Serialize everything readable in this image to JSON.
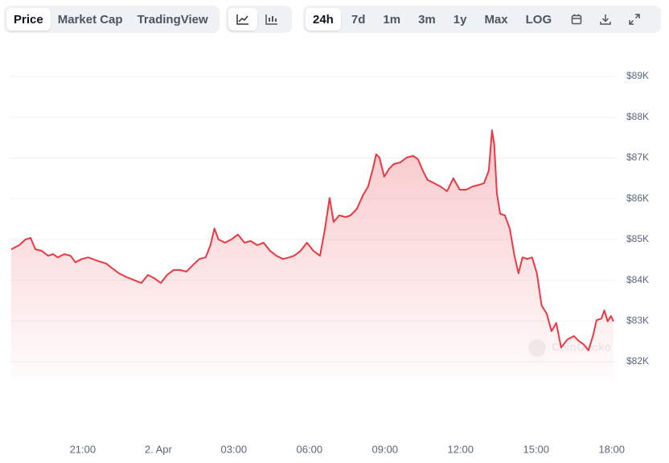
{
  "toolbar": {
    "views": [
      "Price",
      "Market Cap",
      "TradingView"
    ],
    "ranges": [
      "24h",
      "7d",
      "1m",
      "3m",
      "1y",
      "Max",
      "LOG"
    ]
  },
  "watermark": "CoinGecko",
  "chart_data": {
    "type": "line",
    "color": "#ea3943",
    "area": true,
    "grid": true,
    "x": [
      -5.84,
      -5.52,
      -5.27,
      -5.07,
      -4.88,
      -4.63,
      -4.37,
      -4.18,
      -3.99,
      -3.73,
      -3.48,
      -3.29,
      -3.03,
      -2.78,
      -2.52,
      -2.33,
      -2.07,
      -1.82,
      -1.56,
      -1.31,
      -0.99,
      -0.67,
      -0.41,
      -0.16,
      0.1,
      0.35,
      0.61,
      0.86,
      1.12,
      1.37,
      1.63,
      1.88,
      2.07,
      2.23,
      2.39,
      2.65,
      2.9,
      3.16,
      3.42,
      3.67,
      3.93,
      4.18,
      4.44,
      4.69,
      4.95,
      5.2,
      5.39,
      5.65,
      5.9,
      6.16,
      6.42,
      6.61,
      6.8,
      6.96,
      7.18,
      7.44,
      7.63,
      7.88,
      8.14,
      8.33,
      8.52,
      8.65,
      8.78,
      8.97,
      9.16,
      9.35,
      9.61,
      9.86,
      10.12,
      10.31,
      10.5,
      10.69,
      10.95,
      11.2,
      11.46,
      11.71,
      11.97,
      12.22,
      12.48,
      12.74,
      12.93,
      13.12,
      13.25,
      13.34,
      13.44,
      13.57,
      13.76,
      13.95,
      14.14,
      14.3,
      14.46,
      14.65,
      14.84,
      15.03,
      15.22,
      15.42,
      15.61,
      15.8,
      15.99,
      16.25,
      16.5,
      16.69,
      16.88,
      17.08,
      17.27,
      17.4,
      17.59,
      17.71,
      17.84,
      17.97,
      18.07
    ],
    "values": [
      84760,
      84860,
      85000,
      85040,
      84760,
      84720,
      84600,
      84640,
      84560,
      84640,
      84600,
      84440,
      84520,
      84560,
      84500,
      84460,
      84410,
      84290,
      84170,
      84090,
      84010,
      83930,
      84130,
      84050,
      83930,
      84130,
      84250,
      84250,
      84210,
      84370,
      84520,
      84560,
      84860,
      85270,
      85000,
      84920,
      85000,
      85120,
      84920,
      84960,
      84860,
      84920,
      84720,
      84600,
      84520,
      84560,
      84600,
      84720,
      84920,
      84720,
      84600,
      85230,
      86020,
      85430,
      85590,
      85550,
      85590,
      85750,
      86100,
      86300,
      86730,
      87090,
      87010,
      86540,
      86730,
      86850,
      86890,
      87010,
      87050,
      86970,
      86690,
      86460,
      86380,
      86300,
      86180,
      86500,
      86220,
      86220,
      86300,
      86340,
      86380,
      86690,
      87680,
      87320,
      86140,
      85630,
      85590,
      85270,
      84600,
      84170,
      84560,
      84520,
      84560,
      84170,
      83380,
      83180,
      82750,
      82950,
      82350,
      82550,
      82630,
      82510,
      82430,
      82280,
      82670,
      83020,
      83060,
      83260,
      82990,
      83120,
      82990
    ],
    "xlim": [
      -5.9,
      18.2
    ],
    "xticks": [
      {
        "value": -3,
        "label": "21:00"
      },
      {
        "value": 0,
        "label": "2. Apr"
      },
      {
        "value": 3,
        "label": "03:00"
      },
      {
        "value": 6,
        "label": "06:00"
      },
      {
        "value": 9,
        "label": "09:00"
      },
      {
        "value": 12,
        "label": "12:00"
      },
      {
        "value": 15,
        "label": "15:00"
      },
      {
        "value": 18,
        "label": "18:00"
      }
    ],
    "ylim": [
      81600,
      89900
    ],
    "yticks": [
      {
        "value": 82000,
        "label": "$82K"
      },
      {
        "value": 83000,
        "label": "$83K"
      },
      {
        "value": 84000,
        "label": "$84K"
      },
      {
        "value": 85000,
        "label": "$85K"
      },
      {
        "value": 86000,
        "label": "$86K"
      },
      {
        "value": 87000,
        "label": "$87K"
      },
      {
        "value": 88000,
        "label": "$88K"
      },
      {
        "value": 89000,
        "label": "$89K"
      }
    ]
  }
}
